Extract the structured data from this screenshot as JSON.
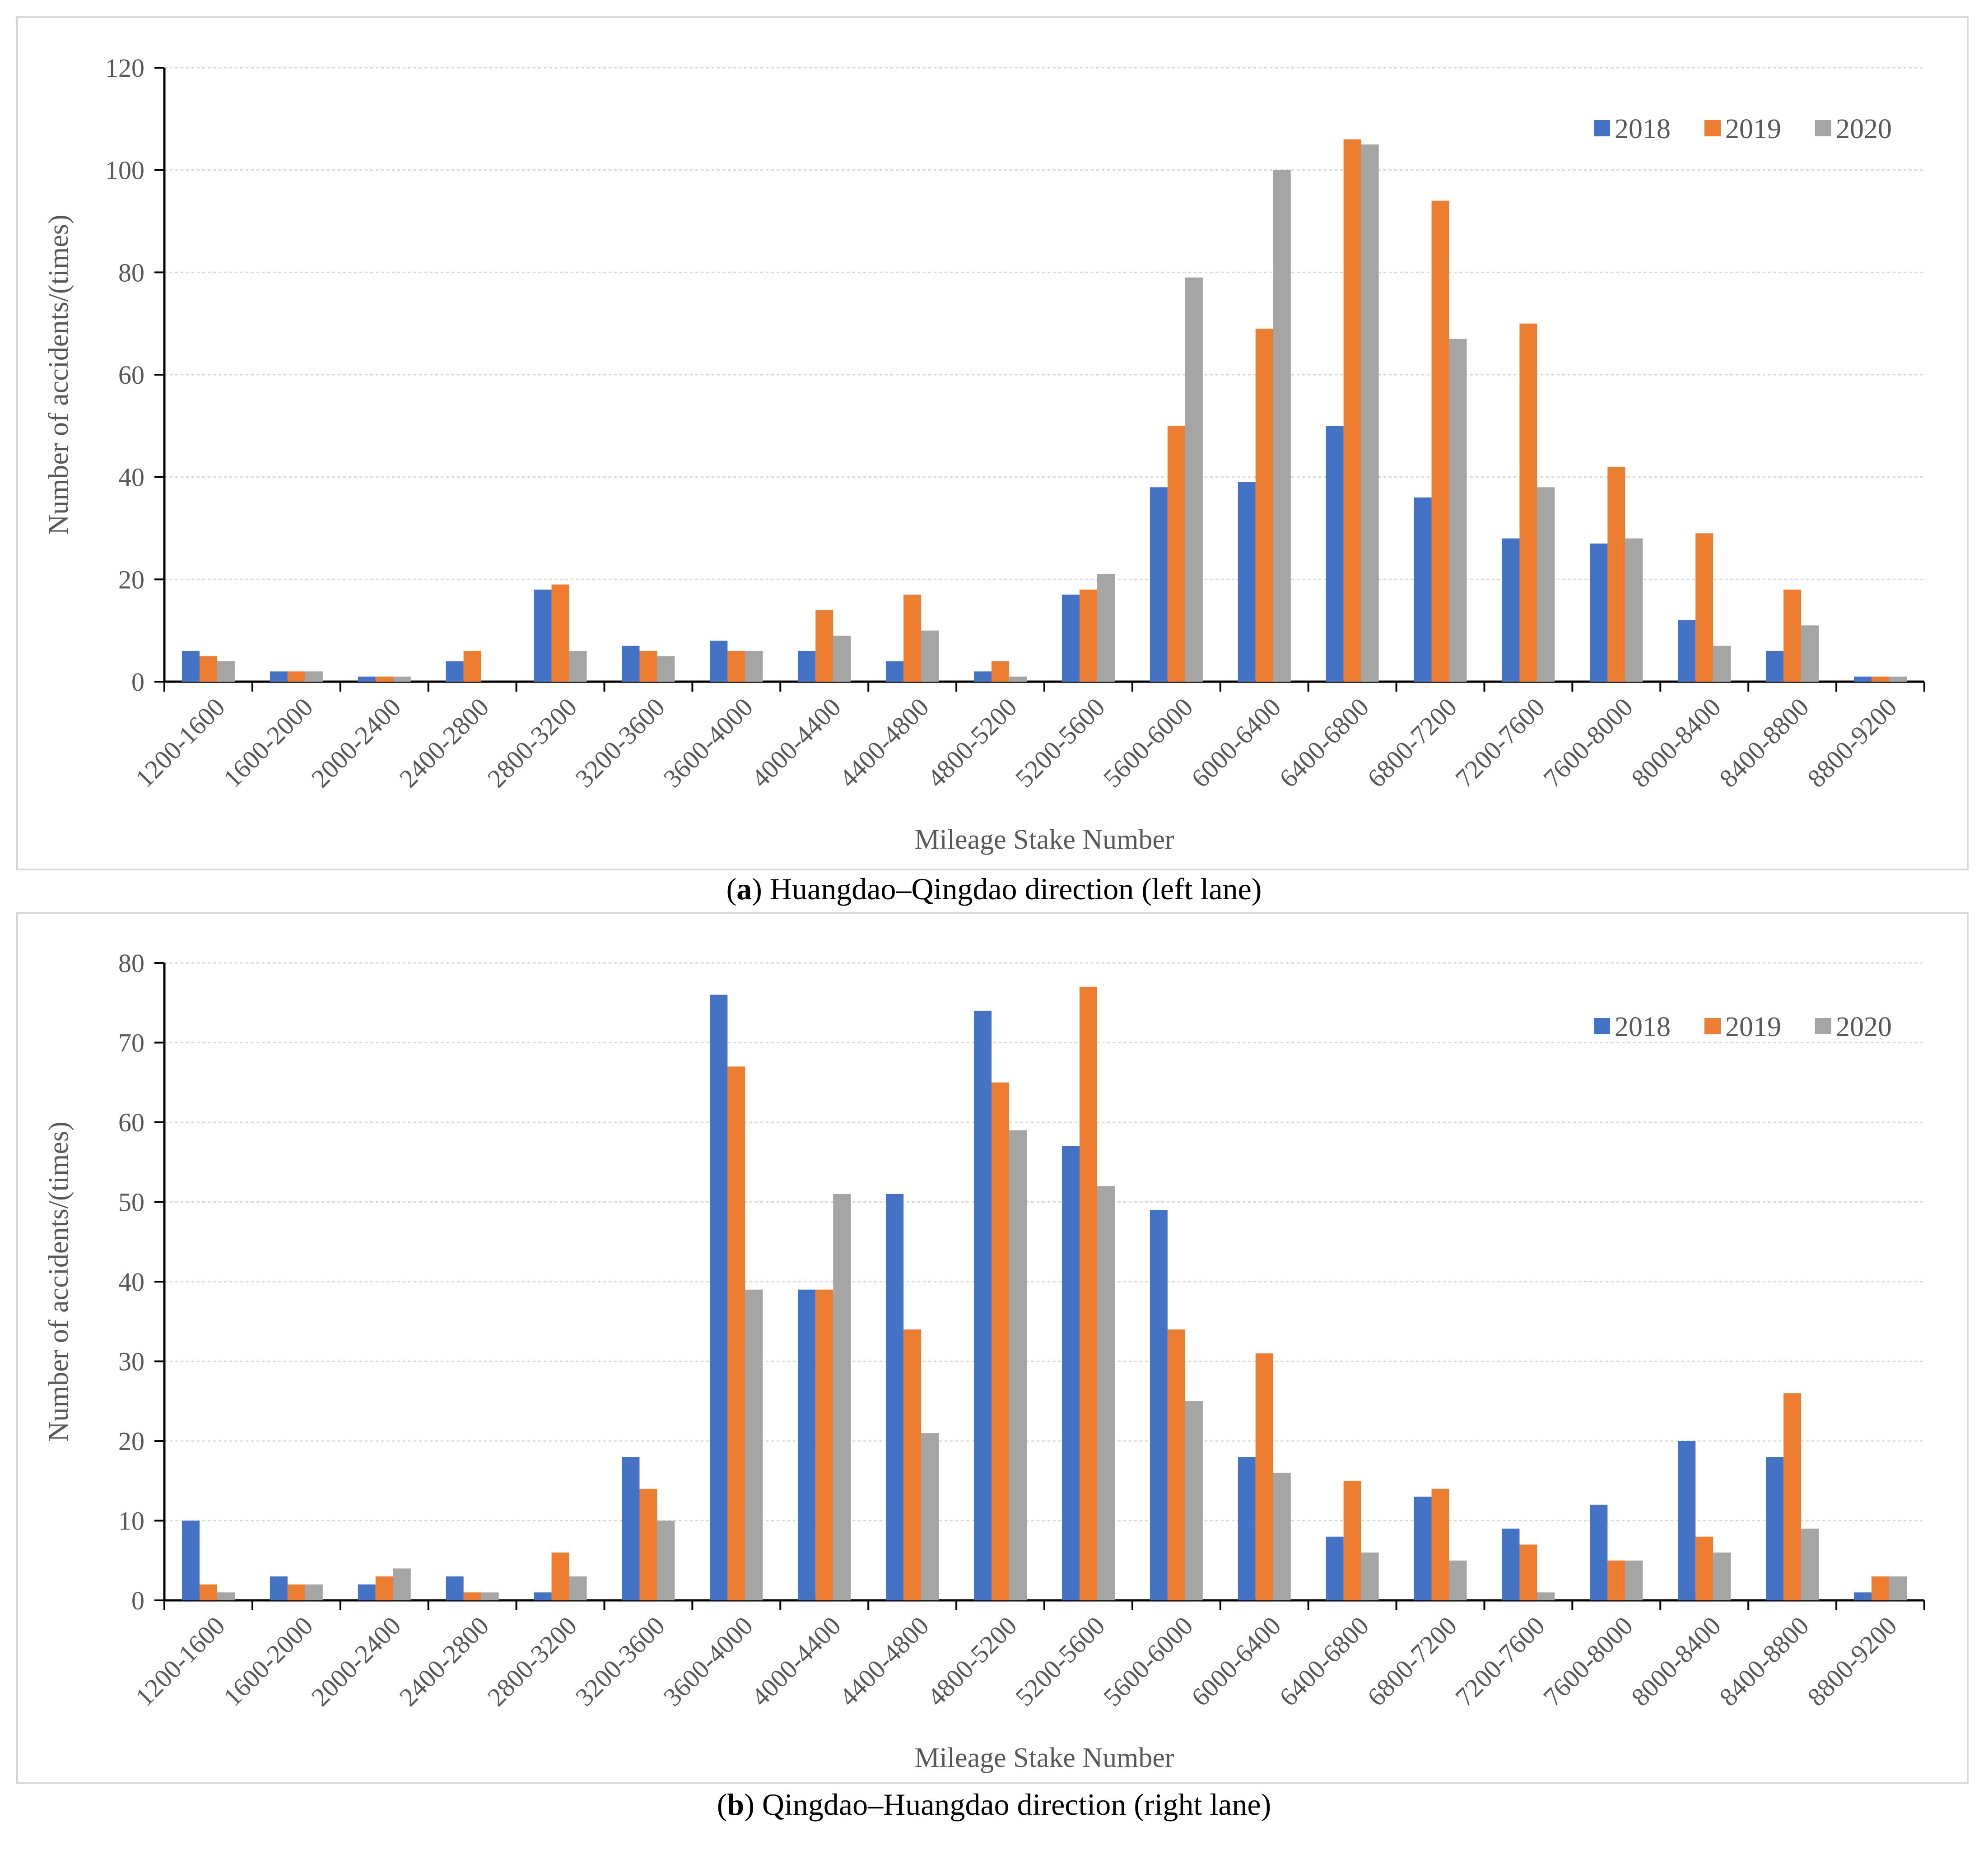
{
  "chart_data": [
    {
      "type": "bar",
      "id": "a",
      "caption_letter": "a",
      "caption_text": " Huangdao–Qingdao direction (left lane)",
      "caption_open": "(",
      "caption_close": ")",
      "xlabel": "Mileage Stake Number",
      "ylabel": "Number of accidents/(times)",
      "ylim": [
        0,
        120
      ],
      "yticks": [
        0,
        20,
        40,
        60,
        80,
        100,
        120
      ],
      "grid": true,
      "legend_position": "top-right",
      "categories": [
        "1200-1600",
        "1600-2000",
        "2000-2400",
        "2400-2800",
        "2800-3200",
        "3200-3600",
        "3600-4000",
        "4000-4400",
        "4400-4800",
        "4800-5200",
        "5200-5600",
        "5600-6000",
        "6000-6400",
        "6400-6800",
        "6800-7200",
        "7200-7600",
        "7600-8000",
        "8000-8400",
        "8400-8800",
        "8800-9200"
      ],
      "series": [
        {
          "name": "2018",
          "color": "#4472c4",
          "values": [
            6,
            2,
            1,
            4,
            18,
            7,
            8,
            6,
            4,
            2,
            17,
            38,
            39,
            50,
            36,
            28,
            27,
            12,
            6,
            1
          ]
        },
        {
          "name": "2019",
          "color": "#ed7d31",
          "values": [
            5,
            2,
            1,
            6,
            19,
            6,
            6,
            14,
            17,
            4,
            18,
            50,
            69,
            106,
            94,
            70,
            42,
            29,
            18,
            1
          ]
        },
        {
          "name": "2020",
          "color": "#a5a5a5",
          "values": [
            4,
            2,
            1,
            0,
            6,
            5,
            6,
            9,
            10,
            1,
            21,
            79,
            100,
            105,
            67,
            38,
            28,
            7,
            11,
            1
          ]
        }
      ]
    },
    {
      "type": "bar",
      "id": "b",
      "caption_letter": "b",
      "caption_text": " Qingdao–Huangdao direction (right lane)",
      "caption_open": "(",
      "caption_close": ")",
      "xlabel": "Mileage Stake Number",
      "ylabel": "Number of accidents/(times)",
      "ylim": [
        0,
        80
      ],
      "yticks": [
        0,
        10,
        20,
        30,
        40,
        50,
        60,
        70,
        80
      ],
      "grid": true,
      "legend_position": "top-right",
      "categories": [
        "1200-1600",
        "1600-2000",
        "2000-2400",
        "2400-2800",
        "2800-3200",
        "3200-3600",
        "3600-4000",
        "4000-4400",
        "4400-4800",
        "4800-5200",
        "5200-5600",
        "5600-6000",
        "6000-6400",
        "6400-6800",
        "6800-7200",
        "7200-7600",
        "7600-8000",
        "8000-8400",
        "8400-8800",
        "8800-9200"
      ],
      "series": [
        {
          "name": "2018",
          "color": "#4472c4",
          "values": [
            10,
            3,
            2,
            3,
            1,
            18,
            76,
            39,
            51,
            74,
            57,
            49,
            18,
            8,
            13,
            9,
            12,
            20,
            18,
            1
          ]
        },
        {
          "name": "2019",
          "color": "#ed7d31",
          "values": [
            2,
            2,
            3,
            1,
            6,
            14,
            67,
            39,
            34,
            65,
            77,
            34,
            31,
            15,
            14,
            7,
            5,
            8,
            26,
            3
          ]
        },
        {
          "name": "2020",
          "color": "#a5a5a5",
          "values": [
            1,
            2,
            4,
            1,
            3,
            10,
            39,
            51,
            21,
            59,
            52,
            25,
            16,
            6,
            5,
            1,
            5,
            6,
            9,
            3
          ]
        }
      ]
    }
  ]
}
